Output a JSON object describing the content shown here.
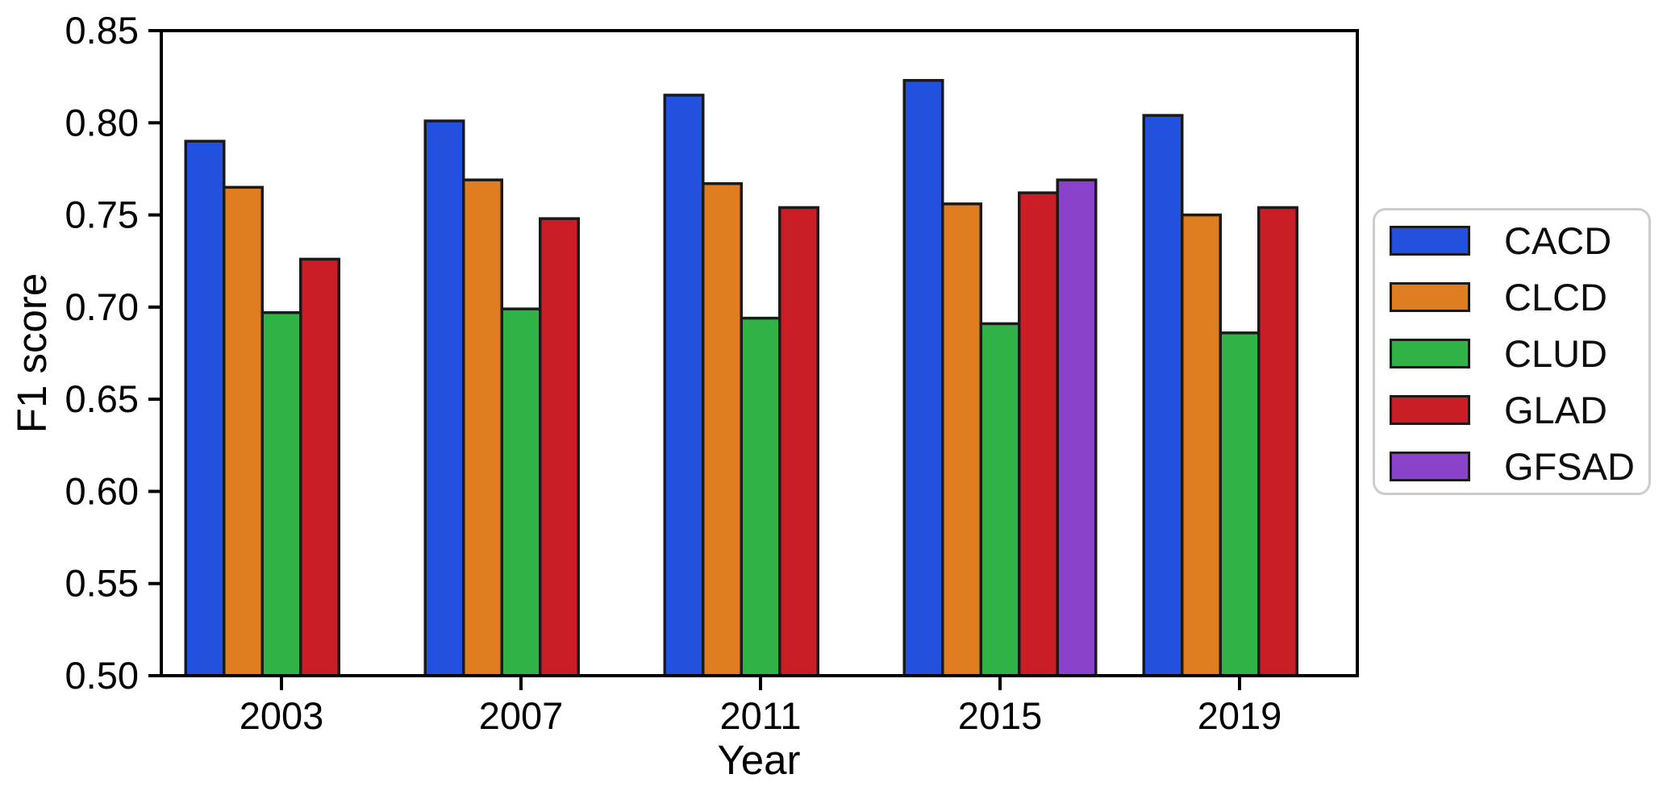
{
  "chart_data": {
    "type": "bar",
    "title": "",
    "xlabel": "Year",
    "ylabel": "F1 score",
    "categories": [
      "2003",
      "2007",
      "2011",
      "2015",
      "2019"
    ],
    "series": [
      {
        "name": "CACD",
        "color": "#2250DF",
        "values": [
          0.79,
          0.801,
          0.815,
          0.823,
          0.804
        ]
      },
      {
        "name": "CLCD",
        "color": "#DF7D20",
        "values": [
          0.765,
          0.769,
          0.767,
          0.756,
          0.75
        ]
      },
      {
        "name": "CLUD",
        "color": "#30B346",
        "values": [
          0.697,
          0.699,
          0.694,
          0.691,
          0.686
        ]
      },
      {
        "name": "GLAD",
        "color": "#CB1D26",
        "values": [
          0.726,
          0.748,
          0.754,
          0.762,
          0.754
        ]
      },
      {
        "name": "GFSAD",
        "color": "#8A41CB",
        "values": [
          null,
          null,
          null,
          0.769,
          null
        ]
      }
    ],
    "ylim": [
      0.5,
      0.85
    ],
    "yticks": [
      0.5,
      0.55,
      0.6,
      0.65,
      0.7,
      0.75,
      0.8,
      0.85
    ],
    "ytick_decimals": 2,
    "grid": false,
    "legend_position": "right",
    "bar_edge_color": "#1a1a1a",
    "axis_color": "#000000",
    "legend_border_color": "#cccccc",
    "background_color": "#ffffff"
  }
}
